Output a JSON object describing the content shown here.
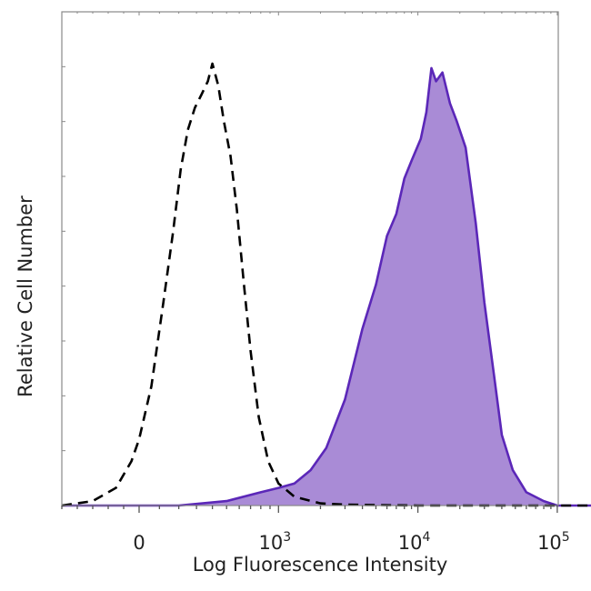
{
  "chart_data": {
    "type": "area",
    "title": "",
    "xlabel": "Log Fluorescence Intensity",
    "ylabel": "Relative Cell Number",
    "x_scale": "biexponential",
    "xlim": [
      -500,
      200000
    ],
    "ylim": [
      0,
      1
    ],
    "grid": false,
    "legend": "none",
    "x_tick_labels": [
      {
        "value": 0,
        "base": "0",
        "exp": ""
      },
      {
        "value": 1000,
        "base": "10",
        "exp": "3"
      },
      {
        "value": 10000,
        "base": "10",
        "exp": "4"
      },
      {
        "value": 100000,
        "base": "10",
        "exp": "5"
      }
    ],
    "series": [
      {
        "style": "dashed-outline",
        "color": "#000000",
        "points": [
          [
            -500,
            0
          ],
          [
            -300,
            0.01
          ],
          [
            -150,
            0.04
          ],
          [
            -50,
            0.1
          ],
          [
            0,
            0.15
          ],
          [
            60,
            0.27
          ],
          [
            120,
            0.46
          ],
          [
            170,
            0.62
          ],
          [
            210,
            0.76
          ],
          [
            250,
            0.85
          ],
          [
            290,
            0.9
          ],
          [
            330,
            0.93
          ],
          [
            370,
            0.96
          ],
          [
            400,
            1.0
          ],
          [
            440,
            0.95
          ],
          [
            480,
            0.87
          ],
          [
            530,
            0.79
          ],
          [
            580,
            0.67
          ],
          [
            640,
            0.5
          ],
          [
            700,
            0.35
          ],
          [
            780,
            0.2
          ],
          [
            880,
            0.1
          ],
          [
            1000,
            0.05
          ],
          [
            1300,
            0.02
          ],
          [
            2000,
            0.005
          ],
          [
            3000,
            0.002
          ],
          [
            10000,
            0.0
          ],
          [
            200000,
            0.0
          ]
        ]
      },
      {
        "style": "filled",
        "color": "#5b27b8",
        "fill": "#a98bd6",
        "points": [
          [
            -500,
            0
          ],
          [
            200,
            0.0
          ],
          [
            500,
            0.01
          ],
          [
            800,
            0.03
          ],
          [
            1000,
            0.04
          ],
          [
            1300,
            0.05
          ],
          [
            1700,
            0.08
          ],
          [
            2200,
            0.13
          ],
          [
            3000,
            0.24
          ],
          [
            4000,
            0.4
          ],
          [
            5000,
            0.5
          ],
          [
            6000,
            0.61
          ],
          [
            7000,
            0.66
          ],
          [
            8000,
            0.74
          ],
          [
            9000,
            0.78
          ],
          [
            10500,
            0.83
          ],
          [
            11500,
            0.89
          ],
          [
            12500,
            0.99
          ],
          [
            13500,
            0.96
          ],
          [
            15000,
            0.98
          ],
          [
            17000,
            0.91
          ],
          [
            19000,
            0.87
          ],
          [
            22000,
            0.81
          ],
          [
            26000,
            0.64
          ],
          [
            30000,
            0.46
          ],
          [
            35000,
            0.3
          ],
          [
            40000,
            0.16
          ],
          [
            48000,
            0.08
          ],
          [
            60000,
            0.03
          ],
          [
            80000,
            0.01
          ],
          [
            100000,
            0.0
          ],
          [
            200000,
            0.0
          ]
        ]
      }
    ]
  }
}
